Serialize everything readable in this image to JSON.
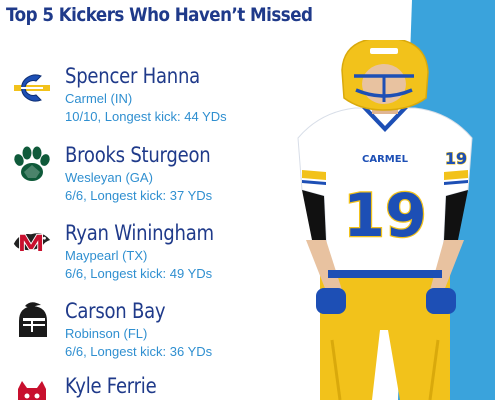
{
  "title": "Top 5 Kickers Who Haven’t Missed",
  "colors": {
    "title": "#1f3a8a",
    "accent": "#3aa3dc",
    "subtext": "#2f8fd0",
    "jersey_gold": "#f2c21b",
    "jersey_blue": "#1d4fb5"
  },
  "jersey": {
    "team_text": "CARMEL",
    "number": "19",
    "sleeve_number": "19"
  },
  "kickers": [
    {
      "name": "Spencer Hanna",
      "school": "Carmel (IN)",
      "stats": "10/10, Longest kick: 44 YDs",
      "logo_icon": "carmel-c-logo-icon"
    },
    {
      "name": "Brooks Sturgeon",
      "school": "Wesleyan (GA)",
      "stats": "6/6, Longest kick: 37 YDs",
      "logo_icon": "paw-print-logo-icon"
    },
    {
      "name": "Ryan Winingham",
      "school": "Maypearl (TX)",
      "stats": "6/6, Longest kick: 49 YDs",
      "logo_icon": "panther-m-logo-icon"
    },
    {
      "name": "Carson Bay",
      "school": "Robinson (FL)",
      "stats": "6/6, Longest kick: 36 YDs",
      "logo_icon": "knight-helmet-logo-icon"
    },
    {
      "name": "Kyle Ferrie",
      "school": "",
      "stats": "",
      "logo_icon": "wildcat-logo-icon"
    }
  ]
}
